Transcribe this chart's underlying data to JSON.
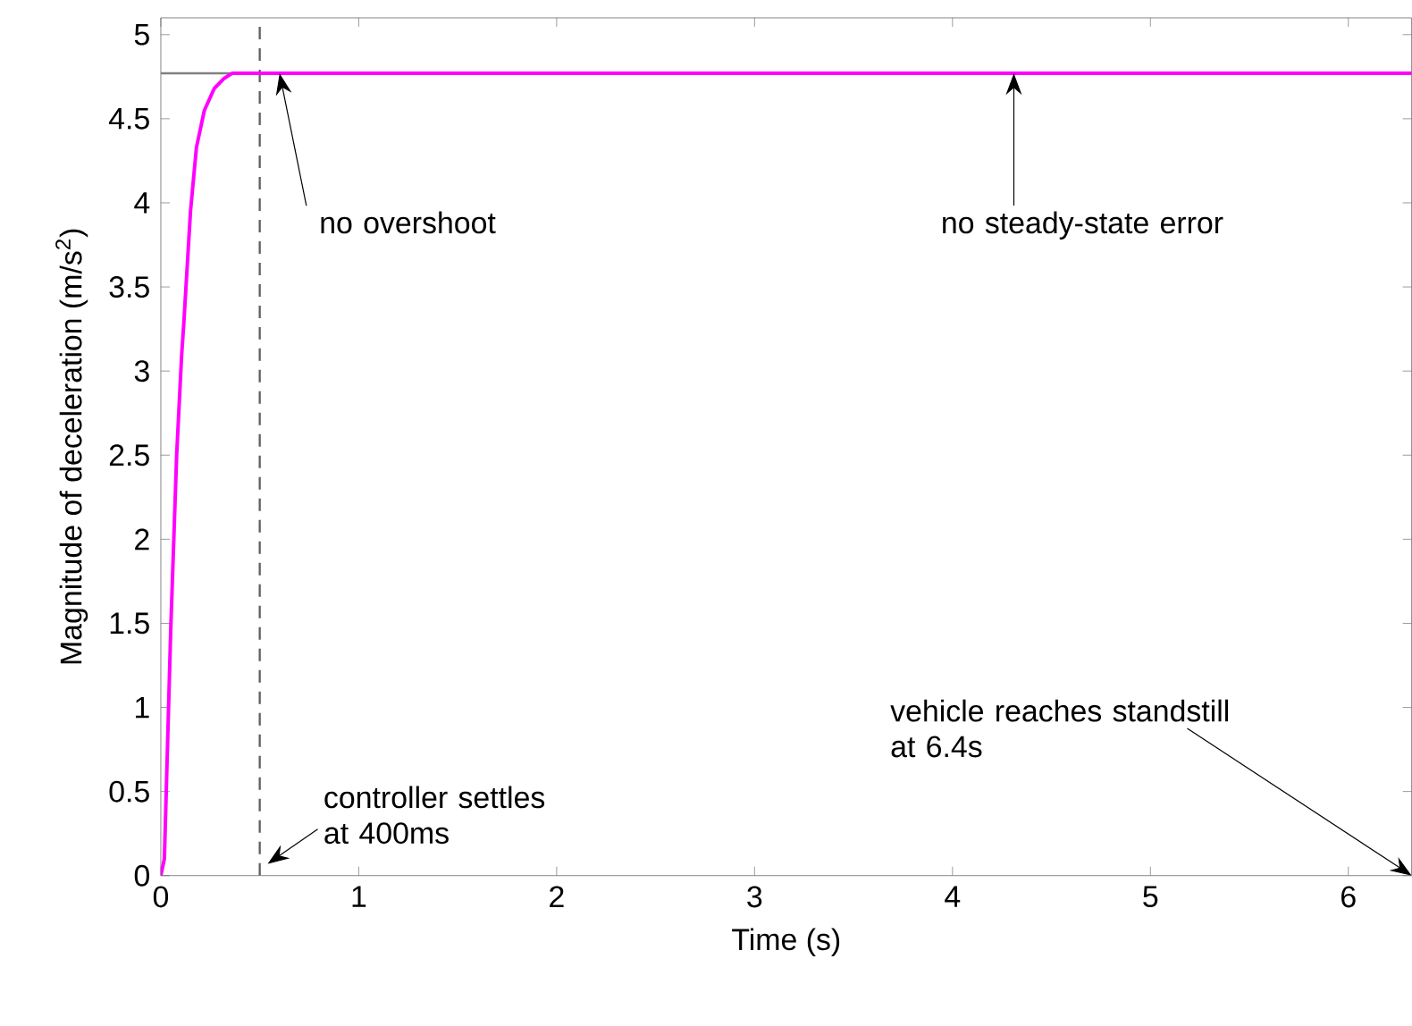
{
  "chart_data": {
    "type": "line",
    "xlabel": "Time (s)",
    "ylabel": "Magnitude of deceleration (m/s$^{2}$)",
    "series": [
      {
        "color": "#ff00ff",
        "x": [
          0,
          0.018,
          0.05,
          0.08,
          0.105,
          0.117,
          0.15,
          0.18,
          0.22,
          0.27,
          0.32,
          0.36,
          0.45,
          0.6,
          1,
          2,
          3,
          4,
          5,
          6,
          6.32
        ],
        "values": [
          0,
          0.1,
          1.46,
          2.5,
          3.09,
          3.3,
          3.95,
          4.33,
          4.55,
          4.68,
          4.74,
          4.77,
          4.77,
          4.77,
          4.77,
          4.77,
          4.77,
          4.77,
          4.77,
          4.77,
          4.77
        ]
      }
    ],
    "xlim": [
      0,
      6.32
    ],
    "ylim": [
      0,
      5.1
    ],
    "xticks": [
      0,
      1,
      2,
      3,
      4,
      5,
      6
    ],
    "yticks": [
      0,
      0.5,
      1,
      1.5,
      2,
      2.5,
      3,
      3.5,
      4,
      4.5,
      5
    ],
    "ref_lines": [
      {
        "axis": "y",
        "value": 4.77,
        "color": "#808080"
      },
      {
        "axis": "x",
        "value": 0.5,
        "color": "#606060",
        "line_style": "dashed"
      }
    ],
    "annotations": [
      {
        "text": "no overshoot",
        "x": 0.6,
        "y": 4.77
      },
      {
        "text": "no steady-state error",
        "x": 4.31,
        "y": 4.77
      },
      {
        "text": "controller settles at 400ms",
        "x": 0.54,
        "y": 0.07
      },
      "vehicle reaches standstill at 6.4s"
    ],
    "grid": false,
    "marker": "none",
    "line_style": "solid"
  }
}
